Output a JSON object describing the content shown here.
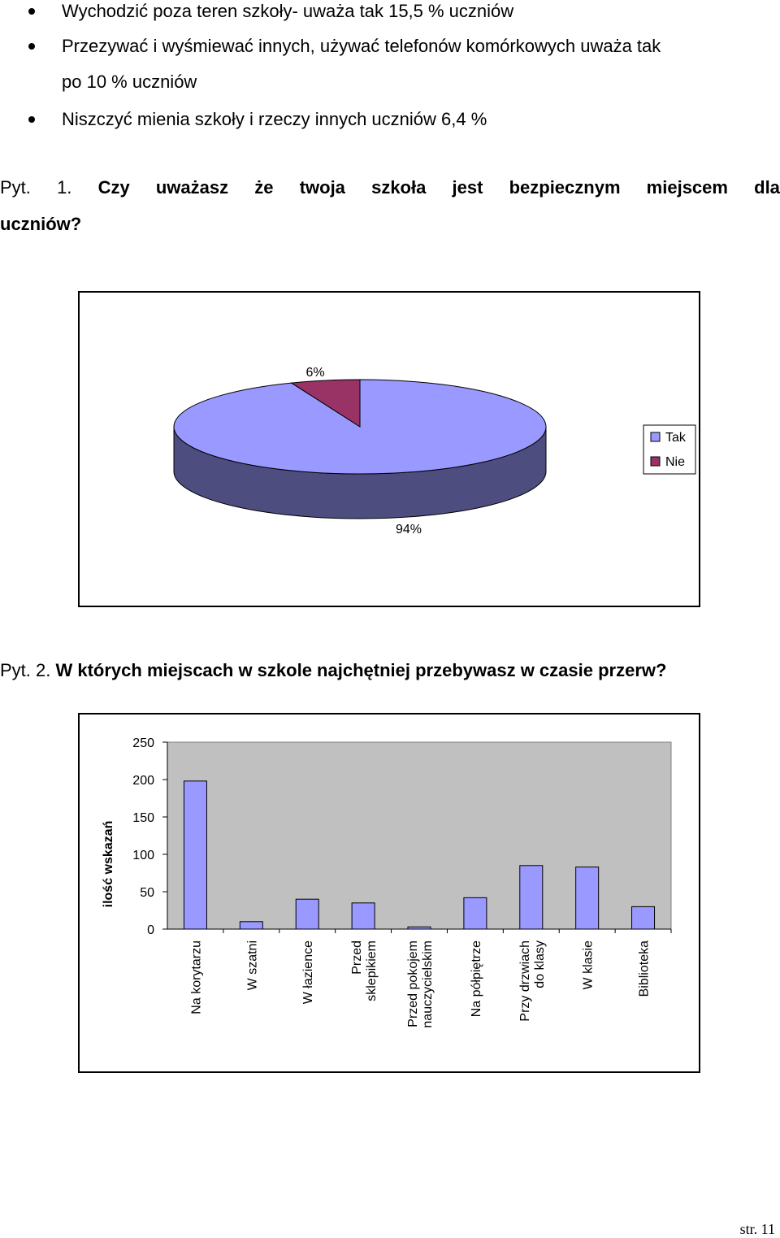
{
  "bullets": [
    {
      "text": "Wychodzić poza  teren szkoły- uważa tak 15,5 % uczniów"
    },
    {
      "text": "Przezywać  i wyśmiewać innych, używać telefonów komórkowych uważa tak",
      "continuation": "po 10 % uczniów"
    },
    {
      "text": "Niszczyć mienia szkoły i  rzeczy innych uczniów 6,4 %"
    }
  ],
  "question1": {
    "prefix": "Pyt.",
    "number": "1.",
    "words": [
      "Czy",
      "uważasz",
      "że",
      "twoja",
      "szkoła",
      "jest",
      "bezpiecznym",
      "miejscem",
      "dla"
    ],
    "line2": "uczniów?"
  },
  "question2": {
    "prefix": "Pyt. 2.",
    "bold_text": "W których miejscach w szkole najchętniej przebywasz w czasie przerw?"
  },
  "chart_data": [
    {
      "type": "pie",
      "title": "",
      "categories": [
        "Tak",
        "Nie"
      ],
      "values": [
        94,
        6
      ],
      "data_labels": [
        "94%",
        "6%"
      ],
      "colors": [
        "#9999ff",
        "#993366"
      ],
      "legend": "right",
      "style": "3d"
    },
    {
      "type": "bar",
      "title": "",
      "ylabel": "ilość wskazań",
      "xlabel": "",
      "ylim": [
        0,
        250
      ],
      "yticks": [
        0,
        50,
        100,
        150,
        200,
        250
      ],
      "categories": [
        [
          "Na korytarzu"
        ],
        [
          "W szatni"
        ],
        [
          "W łazience"
        ],
        [
          "Przed",
          "sklepikiem"
        ],
        [
          "Przed pokojem",
          "nauczycielskim"
        ],
        [
          "Na półpiętrze"
        ],
        [
          "Przy drzwiach",
          "do klasy"
        ],
        [
          "W klasie"
        ],
        [
          "Biblioteka"
        ]
      ],
      "values": [
        198,
        10,
        40,
        35,
        3,
        42,
        85,
        83,
        30
      ],
      "bar_color": "#9999ff",
      "plot_background": "#c0c0c0",
      "grid": false
    }
  ],
  "page_number": "str. 11"
}
